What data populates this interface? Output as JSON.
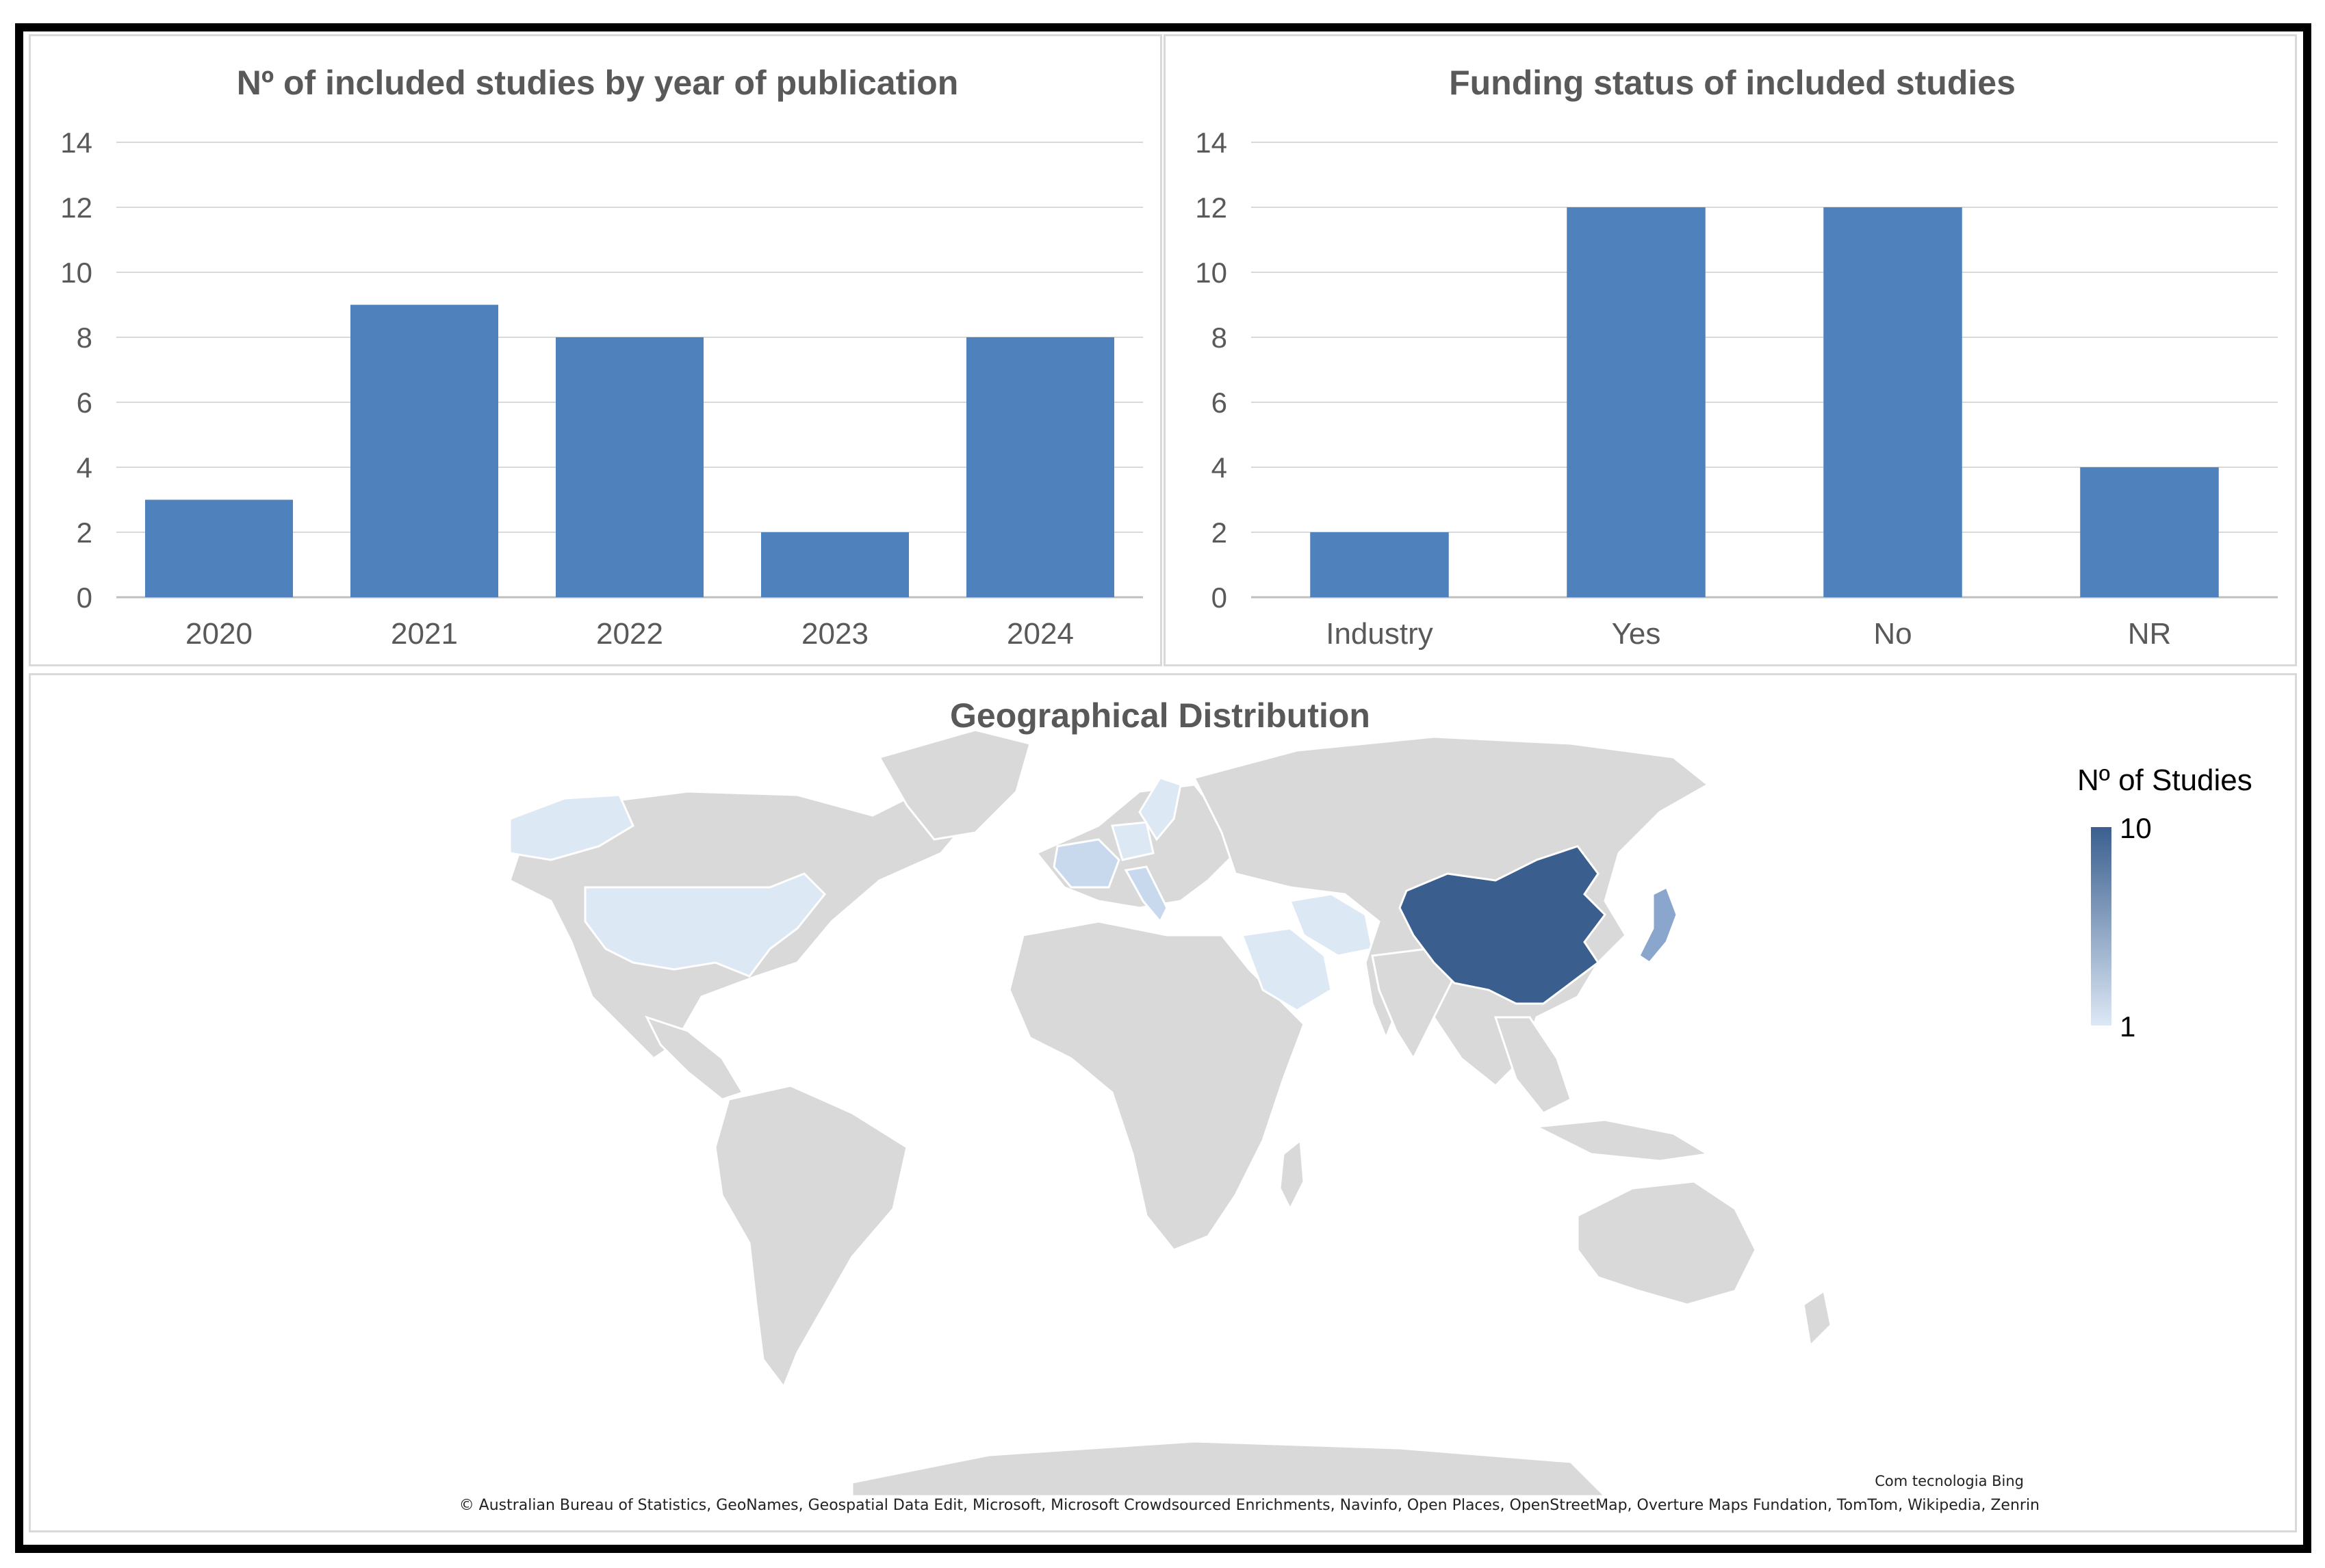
{
  "chart_data": [
    {
      "type": "bar",
      "title": "Nº of included studies by year of publication",
      "categories": [
        "2020",
        "2021",
        "2022",
        "2023",
        "2024"
      ],
      "values": [
        3,
        9,
        8,
        2,
        8
      ],
      "yticks": [
        "0",
        "2",
        "4",
        "6",
        "8",
        "10",
        "12",
        "14"
      ],
      "ylim": [
        0,
        14
      ],
      "grid": true,
      "color": "#4f81bd"
    },
    {
      "type": "bar",
      "title": "Funding status of included studies",
      "categories": [
        "Industry",
        "Yes",
        "No",
        "NR"
      ],
      "values": [
        2,
        12,
        12,
        4
      ],
      "yticks": [
        "0",
        "2",
        "4",
        "6",
        "8",
        "10",
        "12",
        "14"
      ],
      "ylim": [
        0,
        14
      ],
      "grid": true,
      "color": "#4f81bd"
    }
  ],
  "map": {
    "title": "Geographical Distribution",
    "legend": {
      "title": "Nº of Studies",
      "max_label": "10",
      "min_label": "1",
      "color_high": "#3a5f8f",
      "color_low": "#dde8f5"
    },
    "highlighted": [
      {
        "name": "China",
        "value": 10
      },
      {
        "name": "Japan",
        "value": 3
      },
      {
        "name": "United States",
        "value": 1
      },
      {
        "name": "France",
        "value": 1
      },
      {
        "name": "Italy",
        "value": 1
      },
      {
        "name": "Germany",
        "value": 1
      },
      {
        "name": "Iran",
        "value": 1
      },
      {
        "name": "Saudi Arabia",
        "value": 1
      },
      {
        "name": "Sweden",
        "value": 1
      },
      {
        "name": "Alaska",
        "value": 1
      }
    ],
    "powered_by": "Com tecnologia Bing",
    "attribution": "© Australian Bureau of Statistics, GeoNames, Geospatial Data Edit, Microsoft, Microsoft Crowdsourced Enrichments, Navinfo, Open Places, OpenStreetMap, Overture Maps Fundation, TomTom, Wikipedia, Zenrin"
  }
}
